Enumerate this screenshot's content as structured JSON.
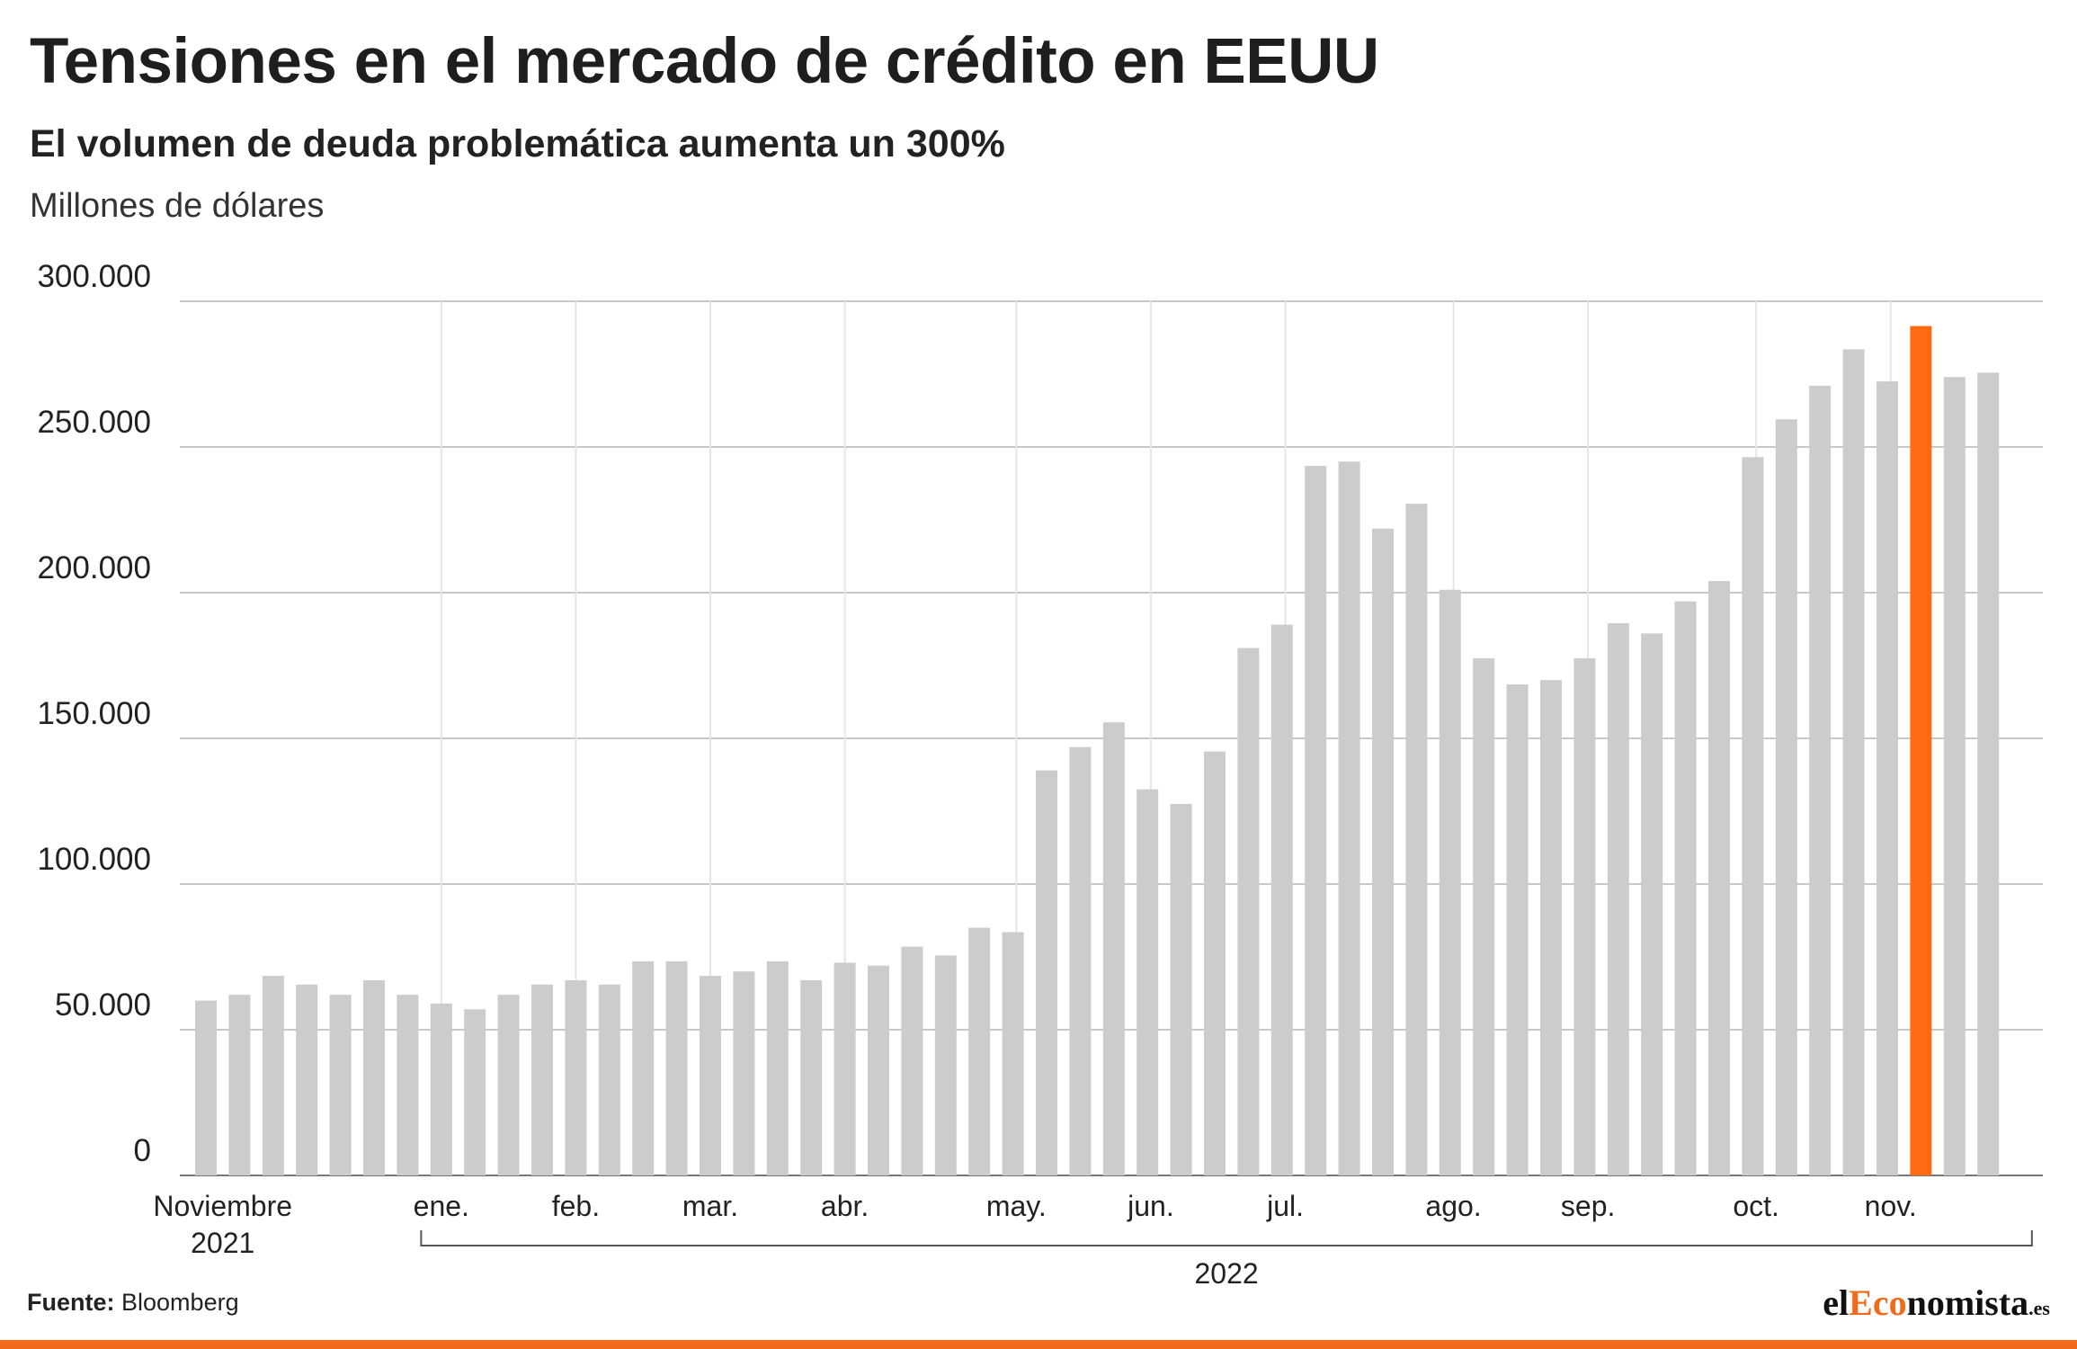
{
  "header": {
    "title": "Tensiones en el mercado de crédito en EEUU",
    "subtitle": "El volumen de deuda problemática aumenta un 300%",
    "unit_label": "Millones de dólares"
  },
  "footer": {
    "source_label": "Fuente:",
    "source_value": "Bloomberg",
    "logo_prefix": "el",
    "logo_accent": "Eco",
    "logo_suffix": "nomista",
    "logo_tld": ".es"
  },
  "colors": {
    "bar": "#cccccc",
    "highlight": "#ff6a13",
    "grid": "#c8c8c8",
    "brand": "#f26b1d"
  },
  "chart_data": {
    "type": "bar",
    "title": "Tensiones en el mercado de crédito en EEUU",
    "subtitle": "El volumen de deuda problemática aumenta un 300%",
    "ylabel": "Millones de dólares",
    "ylim": [
      0,
      300000
    ],
    "yticks": [
      0,
      50000,
      100000,
      150000,
      200000,
      250000,
      300000
    ],
    "ytick_labels": [
      "0",
      "50.000",
      "100.000",
      "150.000",
      "200.000",
      "250.000",
      "300.000"
    ],
    "grid": true,
    "values": [
      60000,
      62000,
      68500,
      65500,
      62000,
      67000,
      62000,
      59000,
      57000,
      62000,
      65500,
      67000,
      65500,
      73500,
      73500,
      68500,
      70000,
      73500,
      67000,
      73000,
      72000,
      78500,
      75500,
      85000,
      83500,
      139000,
      147000,
      155500,
      132500,
      127500,
      145500,
      181000,
      189000,
      243500,
      245000,
      222000,
      230500,
      201000,
      177500,
      168500,
      170000,
      177500,
      189500,
      186000,
      197000,
      204000,
      246500,
      259500,
      271000,
      283500,
      272500,
      291500,
      274000,
      275500
    ],
    "highlight_index": 51,
    "month_labels": [
      {
        "label": "Noviembre",
        "index": 0.5
      },
      {
        "label": "ene.",
        "index": 7
      },
      {
        "label": "feb.",
        "index": 11
      },
      {
        "label": "mar.",
        "index": 15
      },
      {
        "label": "abr.",
        "index": 19
      },
      {
        "label": "may.",
        "index": 24.1
      },
      {
        "label": "jun.",
        "index": 28.1
      },
      {
        "label": "jul.",
        "index": 32.1
      },
      {
        "label": "ago.",
        "index": 37.1
      },
      {
        "label": "sep.",
        "index": 41.1
      },
      {
        "label": "oct.",
        "index": 46.1
      },
      {
        "label": "nov.",
        "index": 50.1
      }
    ],
    "year_labels": [
      {
        "label": "2021",
        "index": 0.5
      },
      {
        "label": "2022",
        "index": 30
      }
    ],
    "year_bracket": {
      "start_index": 6.4,
      "end_index": 54.3,
      "label": "2022"
    }
  }
}
